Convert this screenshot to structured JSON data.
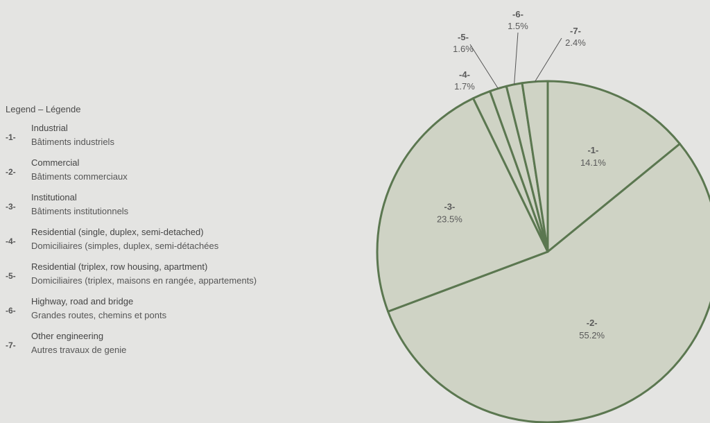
{
  "chart_data": {
    "type": "pie",
    "title": "",
    "legend_title": "Legend – Légende",
    "legend_placement": "left",
    "slices": [
      {
        "id": "-1-",
        "label_en": "Industrial",
        "label_fr": "Bâtiments industriels",
        "value": 14.1,
        "value_label": "14.1%"
      },
      {
        "id": "-2-",
        "label_en": "Commercial",
        "label_fr": "Bâtiments commerciaux",
        "value": 55.2,
        "value_label": "55.2%"
      },
      {
        "id": "-3-",
        "label_en": "Institutional",
        "label_fr": "Bâtiments institutionnels",
        "value": 23.5,
        "value_label": "23.5%"
      },
      {
        "id": "-4-",
        "label_en": "Residential (single, duplex, semi-detached)",
        "label_fr": "Domiciliaires (simples, duplex, semi-détachées",
        "value": 1.7,
        "value_label": "1.7%"
      },
      {
        "id": "-5-",
        "label_en": "Residential (triplex, row housing, apartment)",
        "label_fr": "Domiciliaires (triplex, maisons en rangée, appartements)",
        "value": 1.6,
        "value_label": "1.6%"
      },
      {
        "id": "-6-",
        "label_en": "Highway, road and bridge",
        "label_fr": "Grandes routes, chemins et ponts",
        "value": 1.5,
        "value_label": "1.5%"
      },
      {
        "id": "-7-",
        "label_en": "Other engineering",
        "label_fr": "Autres travaux de genie",
        "value": 2.4,
        "value_label": "2.4%"
      }
    ],
    "colors": {
      "fill": "#cfd3c5",
      "stroke": "#5b7750",
      "background": "#e4e4e2"
    }
  }
}
